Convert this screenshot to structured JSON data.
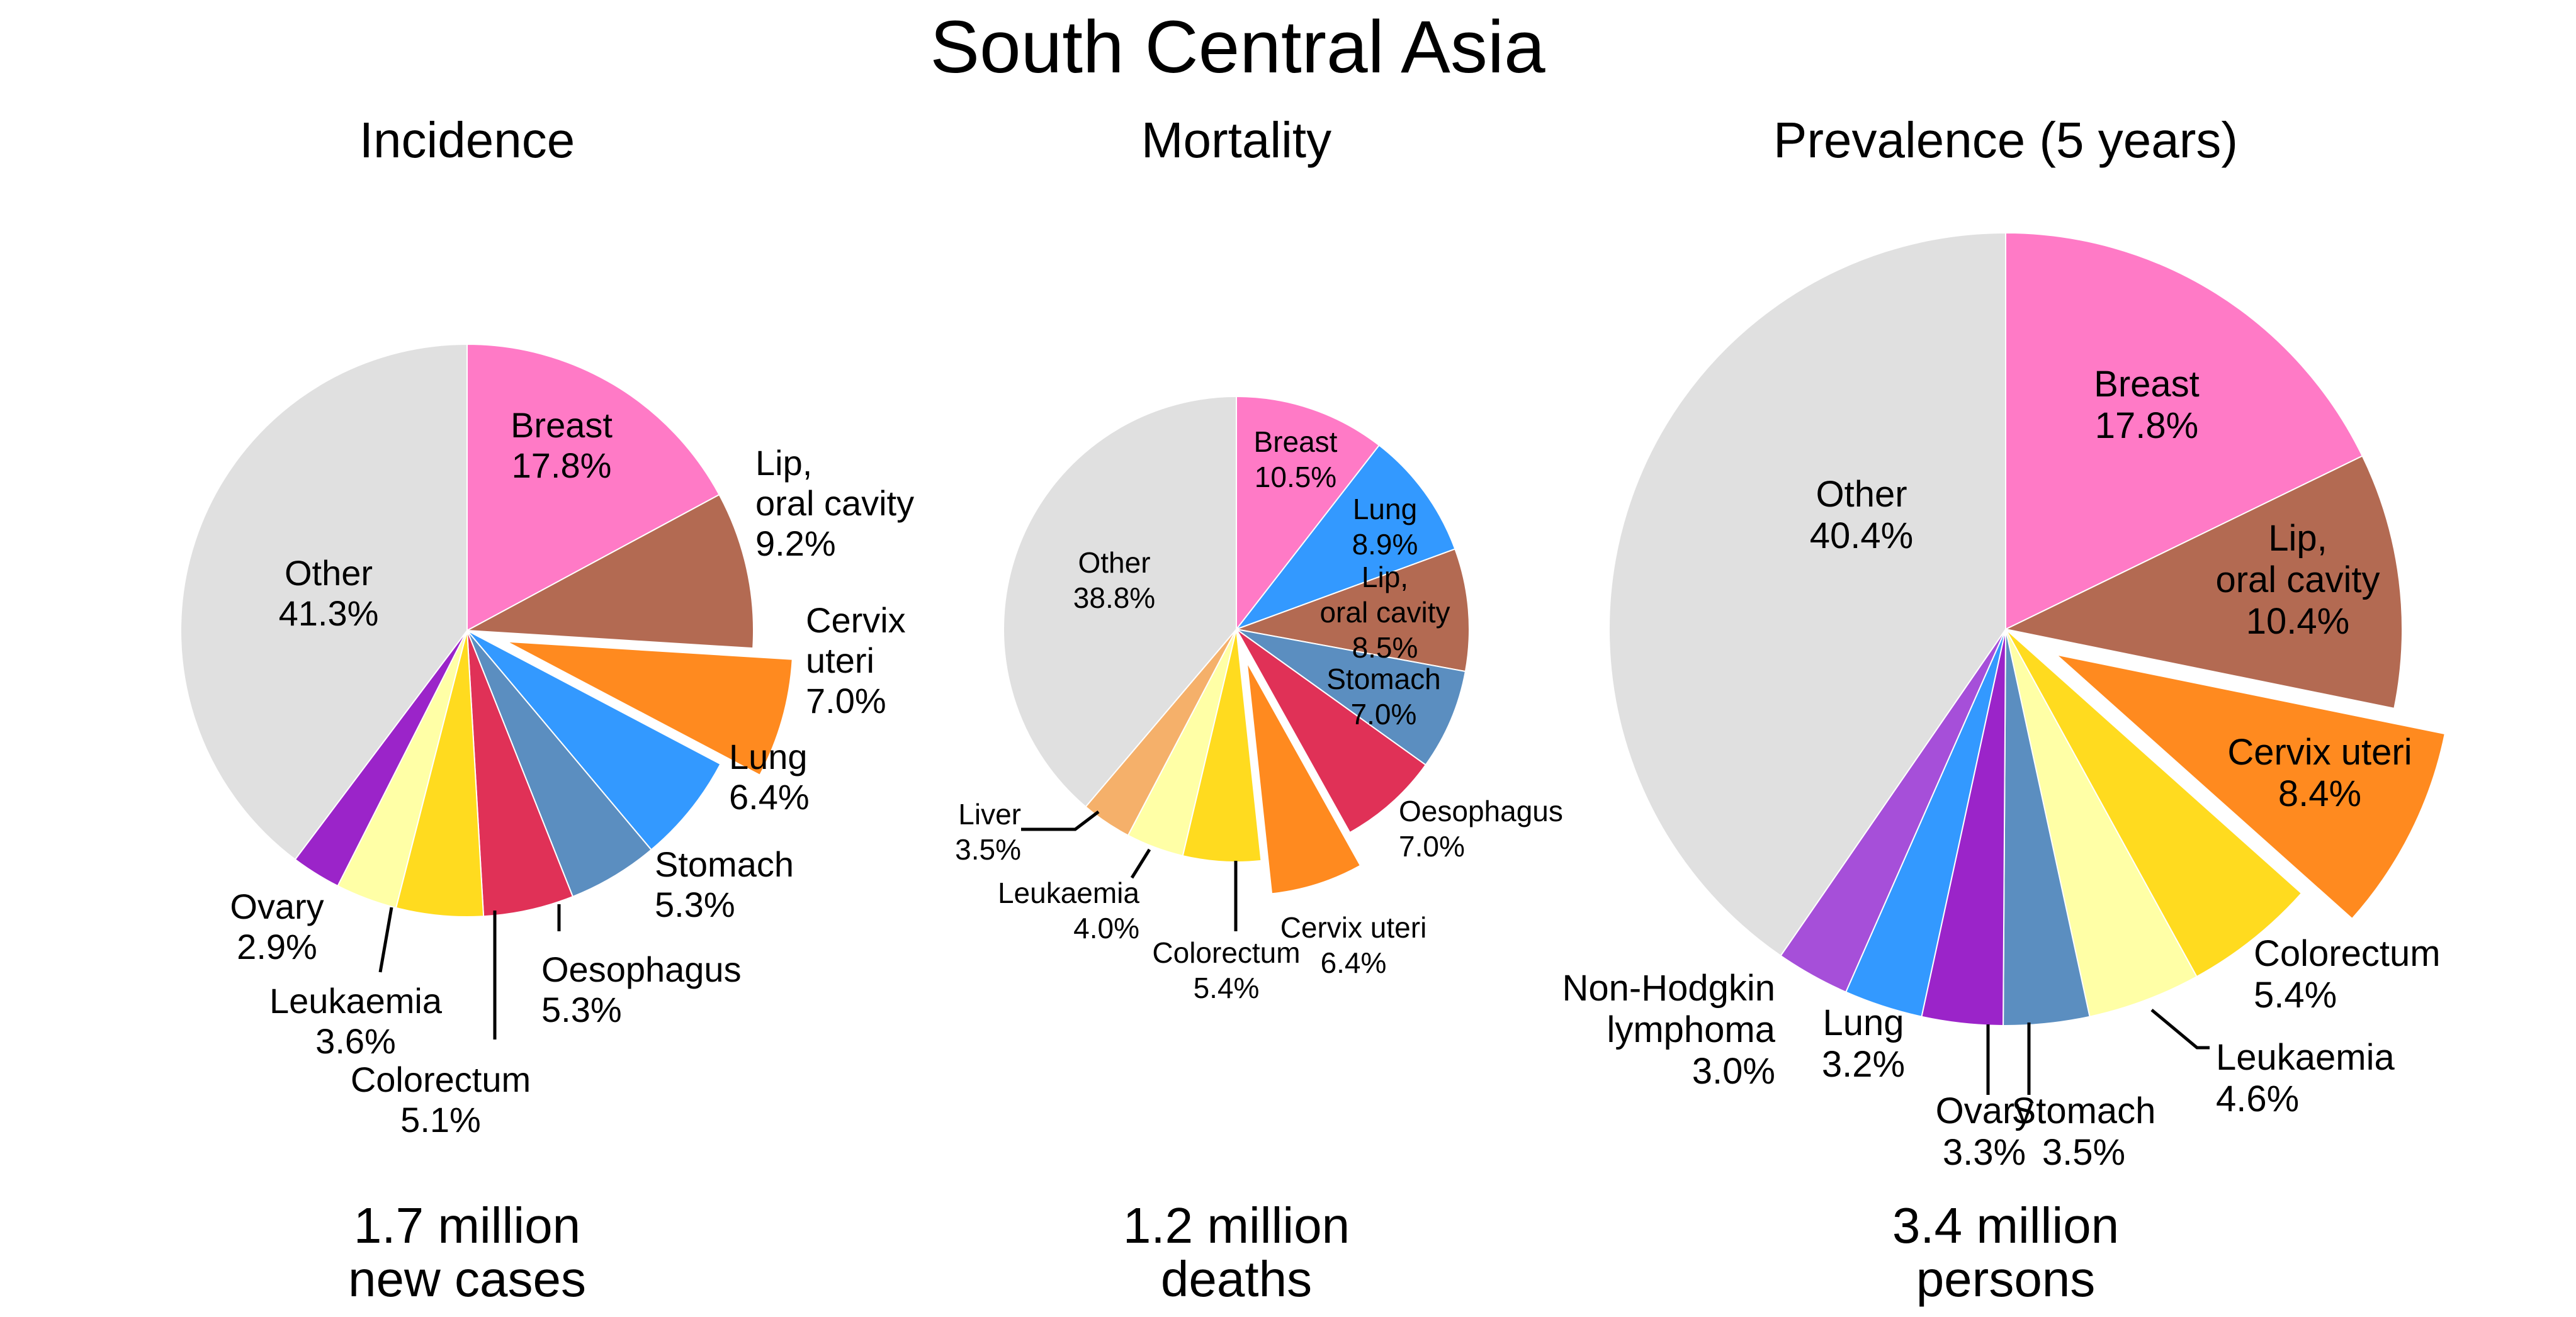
{
  "title": "South Central Asia",
  "colors": {
    "Breast": "#ff7ac6",
    "Lip, oral cavity": "#b36a52",
    "Cervix uteri": "#ff8a1f",
    "Lung": "#3399ff",
    "Stomach": "#5b8ec0",
    "Oesophagus": "#e03157",
    "Colorectum": "#ffdb1f",
    "Leukaemia": "#ffffa6",
    "Ovary": "#9b24c9",
    "Liver": "#f5b06a",
    "Non-Hodgkin lymphoma": "#a64fd9",
    "Other": "#e0e0e0"
  },
  "chart_data": [
    {
      "type": "pie",
      "title": "Incidence",
      "footer": [
        "1.7 million",
        "new cases"
      ],
      "slices": [
        {
          "name": "Breast",
          "label": [
            "Breast",
            "17.8%"
          ],
          "value": 17.8
        },
        {
          "name": "Lip, oral cavity",
          "label": [
            "Lip,",
            "oral cavity",
            "9.2%"
          ],
          "value": 9.2
        },
        {
          "name": "Cervix uteri",
          "label": [
            "Cervix",
            "uteri",
            "7.0%"
          ],
          "value": 7.0,
          "exploded": true
        },
        {
          "name": "Lung",
          "label": [
            "Lung",
            "6.4%"
          ],
          "value": 6.4
        },
        {
          "name": "Stomach",
          "label": [
            "Stomach",
            "5.3%"
          ],
          "value": 5.3
        },
        {
          "name": "Oesophagus",
          "label": [
            "Oesophagus",
            "5.3%"
          ],
          "value": 5.3
        },
        {
          "name": "Colorectum",
          "label": [
            "Colorectum",
            "5.1%"
          ],
          "value": 5.1
        },
        {
          "name": "Leukaemia",
          "label": [
            "Leukaemia",
            "3.6%"
          ],
          "value": 3.6
        },
        {
          "name": "Ovary",
          "label": [
            "Ovary",
            "2.9%"
          ],
          "value": 2.9
        },
        {
          "name": "Other",
          "label": [
            "Other",
            "41.3%"
          ],
          "value": 41.3
        }
      ]
    },
    {
      "type": "pie",
      "title": "Mortality",
      "footer": [
        "1.2 million",
        "deaths"
      ],
      "slices": [
        {
          "name": "Breast",
          "label": [
            "Breast",
            "10.5%"
          ],
          "value": 10.5
        },
        {
          "name": "Lung",
          "label": [
            "Lung",
            "8.9%"
          ],
          "value": 8.9
        },
        {
          "name": "Lip, oral cavity",
          "label": [
            "Lip,",
            "oral cavity",
            "8.5%"
          ],
          "value": 8.5
        },
        {
          "name": "Stomach",
          "label": [
            "Stomach",
            "7.0%"
          ],
          "value": 7.0
        },
        {
          "name": "Oesophagus",
          "label": [
            "Oesophagus",
            "7.0%"
          ],
          "value": 7.0
        },
        {
          "name": "Cervix uteri",
          "label": [
            "Cervix uteri",
            "6.4%"
          ],
          "value": 6.4,
          "exploded": true
        },
        {
          "name": "Colorectum",
          "label": [
            "Colorectum",
            "5.4%"
          ],
          "value": 5.4
        },
        {
          "name": "Leukaemia",
          "label": [
            "Leukaemia",
            "4.0%"
          ],
          "value": 4.0
        },
        {
          "name": "Liver",
          "label": [
            "Liver",
            "3.5%"
          ],
          "value": 3.5
        },
        {
          "name": "Other",
          "label": [
            "Other",
            "38.8%"
          ],
          "value": 38.8
        }
      ]
    },
    {
      "type": "pie",
      "title": "Prevalence (5 years)",
      "footer": [
        "3.4 million",
        "persons"
      ],
      "slices": [
        {
          "name": "Breast",
          "label": [
            "Breast",
            "17.8%"
          ],
          "value": 17.8
        },
        {
          "name": "Lip, oral cavity",
          "label": [
            "Lip,",
            "oral cavity",
            "10.4%"
          ],
          "value": 10.4
        },
        {
          "name": "Cervix uteri",
          "label": [
            "Cervix uteri",
            "8.4%"
          ],
          "value": 8.4,
          "exploded": true
        },
        {
          "name": "Colorectum",
          "label": [
            "Colorectum",
            "5.4%"
          ],
          "value": 5.4
        },
        {
          "name": "Leukaemia",
          "label": [
            "Leukaemia",
            "4.6%"
          ],
          "value": 4.6
        },
        {
          "name": "Stomach",
          "label": [
            "Stomach",
            "3.5%"
          ],
          "value": 3.5
        },
        {
          "name": "Ovary",
          "label": [
            "Ovary",
            "3.3%"
          ],
          "value": 3.3
        },
        {
          "name": "Lung",
          "label": [
            "Lung",
            "3.2%"
          ],
          "value": 3.2
        },
        {
          "name": "Non-Hodgkin lymphoma",
          "label": [
            "Non-Hodgkin",
            "lymphoma",
            "3.0%"
          ],
          "value": 3.0
        },
        {
          "name": "Other",
          "label": [
            "Other",
            "40.4%"
          ],
          "value": 40.4
        }
      ]
    }
  ]
}
